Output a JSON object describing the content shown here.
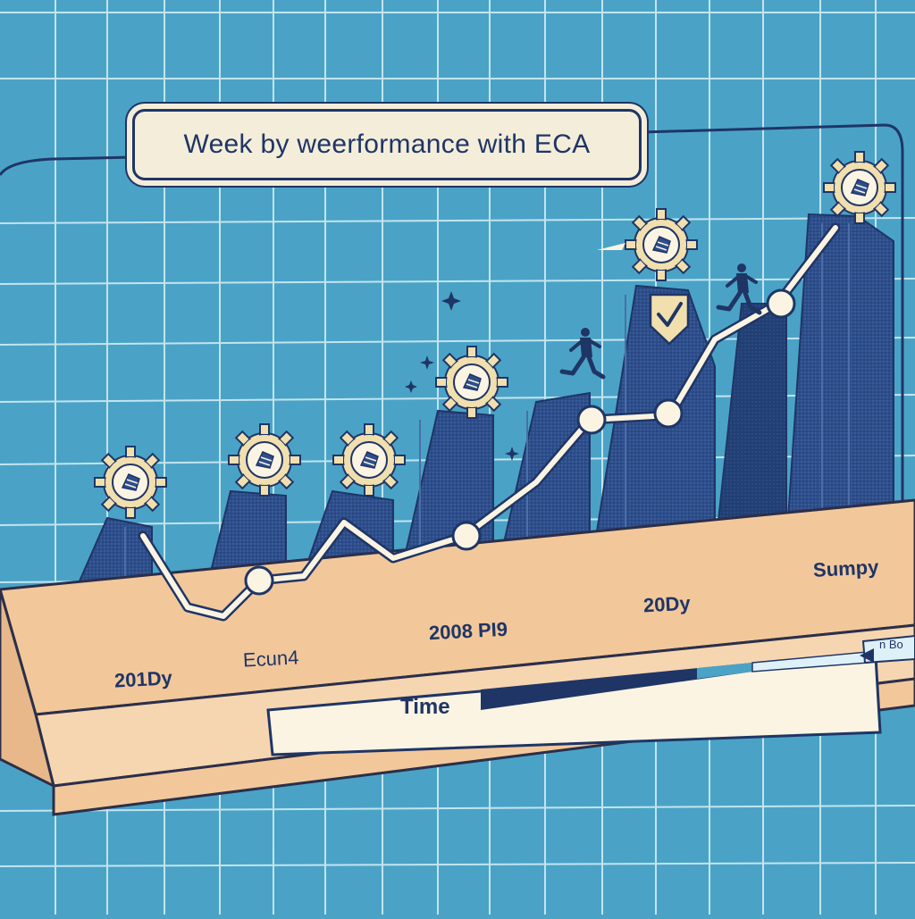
{
  "title": "Week by weerformance with ECA",
  "axis_labels": [
    "201Dy",
    "Ecun4",
    "2008 PI9",
    "20Dy",
    "Sumpy"
  ],
  "time_label": "Time",
  "flag_label": "n Bo",
  "colors": {
    "background": "#4aa3c6",
    "grid": "#d9f0f7",
    "bar_dark": "#1f3566",
    "bar_mid": "#2d4e8c",
    "platform": "#f2c89b",
    "platform_edge": "#2b2f4a",
    "line": "#fbf4e2",
    "gear": "#f1dfae"
  },
  "icons": [
    "gear-badge-icon",
    "shield-check-icon",
    "running-businessman-icon",
    "sparkle-icon"
  ]
}
